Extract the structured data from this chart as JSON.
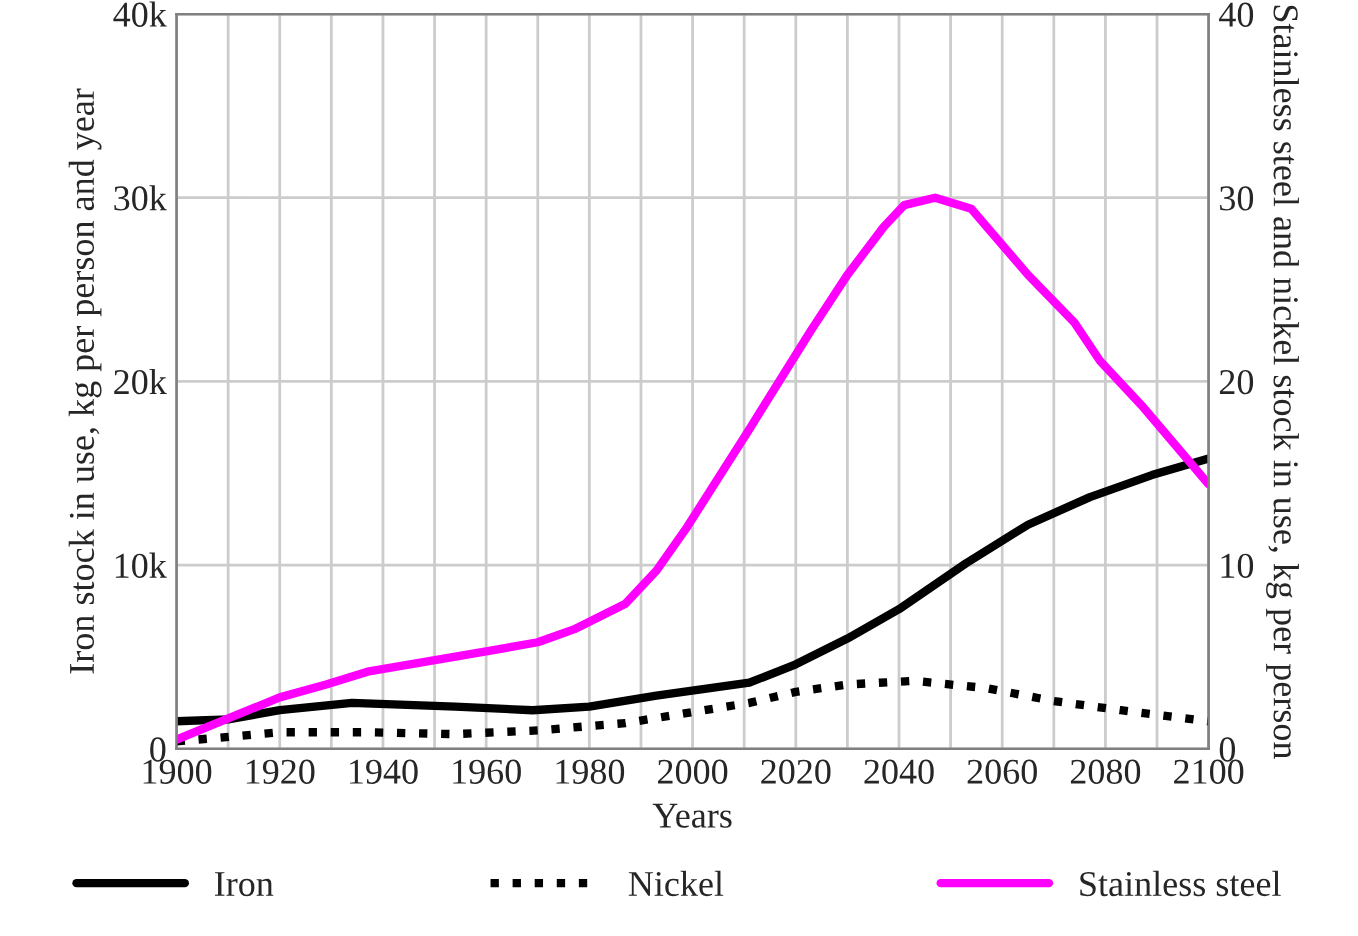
{
  "chart_data": {
    "type": "line",
    "xlabel": "Years",
    "ylabel": "Iron stock in use, kg per person and year",
    "y2label": "Stainless steel and nickel stock in use, kg per person",
    "series": [
      {
        "name": "Iron",
        "color": "#000000",
        "line_style": "solid",
        "x": [
          1900,
          1910,
          1920,
          1934,
          1954,
          1969,
          1980,
          1993,
          2011,
          2020,
          2030,
          2040,
          2053,
          2065,
          2077,
          2089,
          2100
        ],
        "values": [
          1500,
          1600,
          2100,
          2500,
          2300,
          2100,
          2300,
          2900,
          3600,
          4600,
          6000,
          7600,
          10100,
          12200,
          13700,
          14900,
          15800
        ]
      },
      {
        "name": "Nickel",
        "color": "#000000",
        "line_style": "dotted",
        "axis": "y2",
        "x": [
          1900,
          1920,
          1937,
          1954,
          1970,
          1987,
          2000,
          2011,
          2020,
          2030,
          2043,
          2057,
          2070,
          2083,
          2100
        ],
        "values": [
          0.4,
          0.9,
          0.9,
          0.8,
          1.0,
          1.4,
          2.0,
          2.5,
          3.1,
          3.5,
          3.7,
          3.3,
          2.6,
          2.1,
          1.5
        ]
      },
      {
        "name": "Stainless steel",
        "color": "#ff00ff",
        "line_style": "solid",
        "axis": "y2",
        "x": [
          1900,
          1920,
          1929,
          1937,
          1960,
          1970,
          1977,
          1987,
          1993,
          1999,
          2011,
          2023,
          2030,
          2037,
          2041,
          2047,
          2054,
          2065,
          2074,
          2079,
          2087,
          2100
        ],
        "values": [
          0.5,
          2.8,
          3.5,
          4.2,
          5.3,
          5.8,
          6.5,
          7.9,
          9.7,
          12.1,
          17.4,
          22.8,
          25.8,
          28.4,
          29.6,
          30.0,
          29.4,
          25.8,
          23.2,
          21.1,
          18.7,
          14.4
        ]
      }
    ],
    "xlim": [
      1900,
      2100
    ],
    "xticks": [
      1900,
      {
        "value": 1910,
        "label": null
      },
      1920,
      {
        "value": 1930,
        "label": null
      },
      1940,
      {
        "value": 1950,
        "label": null
      },
      1960,
      {
        "value": 1970,
        "label": null
      },
      1980,
      {
        "value": 1990,
        "label": null
      },
      2000,
      {
        "value": 2010,
        "label": null
      },
      2020,
      {
        "value": 2030,
        "label": null
      },
      2040,
      {
        "value": 2050,
        "label": null
      },
      2060,
      {
        "value": 2070,
        "label": null
      },
      2080,
      {
        "value": 2090,
        "label": null
      },
      2100
    ],
    "ylim": [
      0,
      40000
    ],
    "yticks": [
      0,
      {
        "value": 10000,
        "label": "10k"
      },
      {
        "value": 20000,
        "label": "20k"
      },
      {
        "value": 30000,
        "label": "30k"
      },
      {
        "value": 40000,
        "label": "40k"
      }
    ],
    "y2lim": [
      0,
      40
    ],
    "y2ticks": [
      0,
      10,
      20,
      30,
      40
    ],
    "grid": true,
    "legend": "bottom"
  }
}
